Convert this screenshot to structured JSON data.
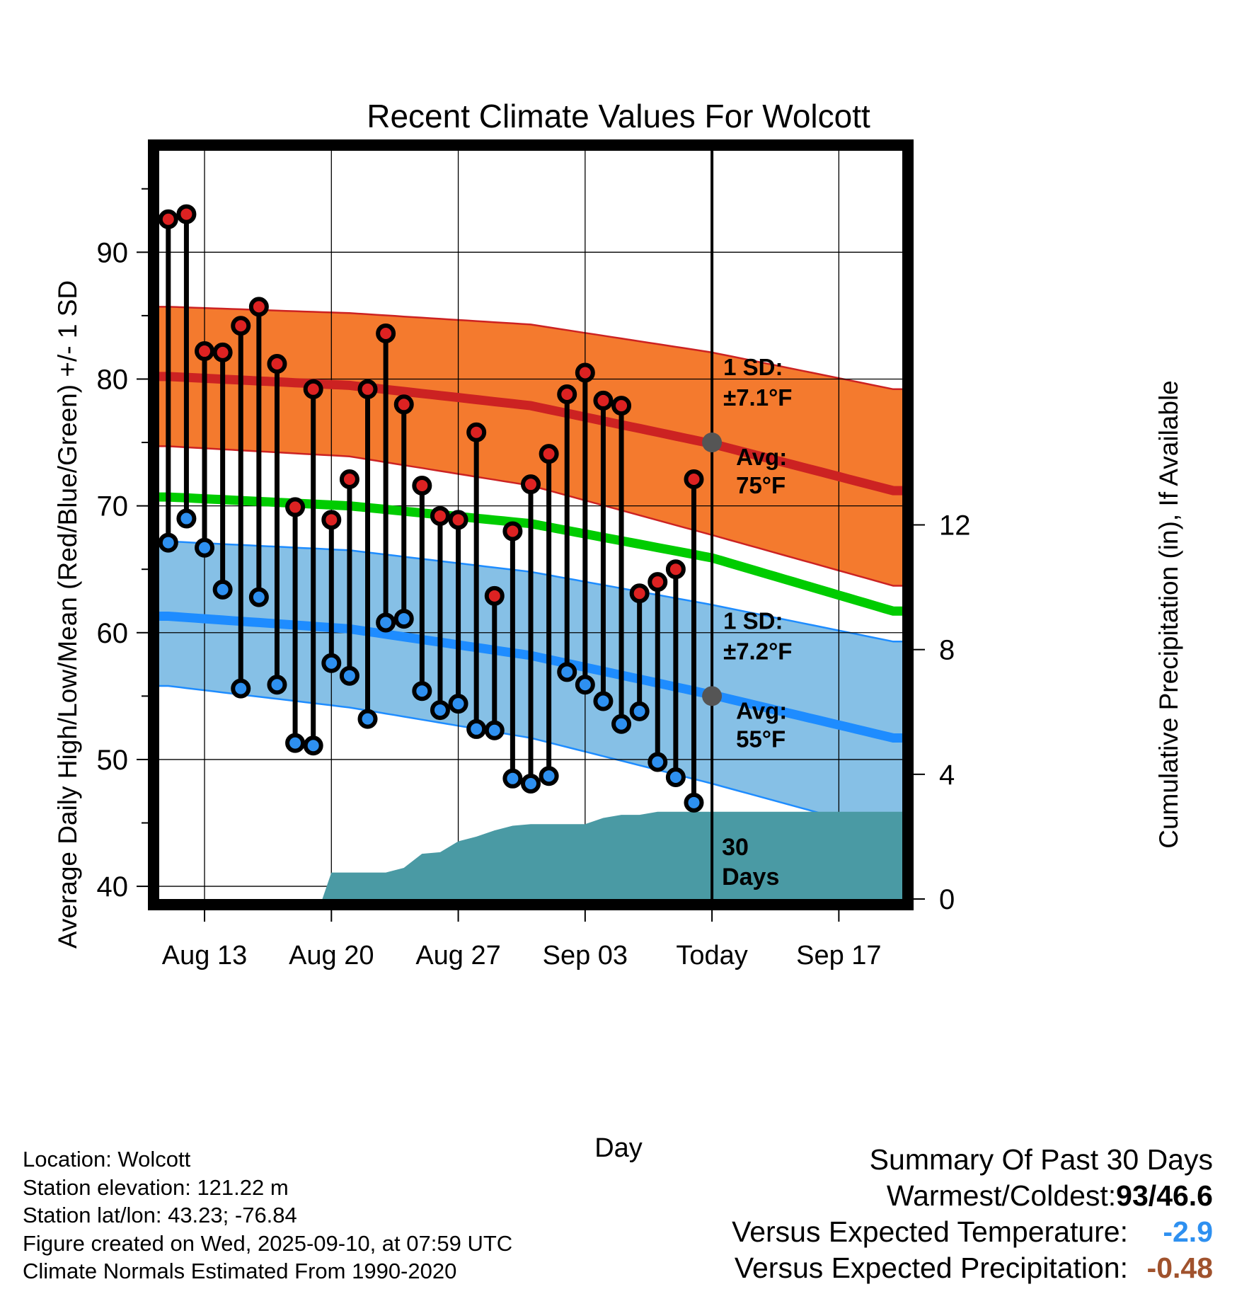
{
  "chart_data": {
    "type": "line",
    "title": "Recent Climate Values For Wolcott",
    "xlabel": "Day",
    "ylabel": "Average Daily High/Low/Mean (Red/Blue/Green) +/- 1 SD",
    "y2label": "Cumulative Precipitation (in), If Available",
    "ylim": [
      39,
      98
    ],
    "y2lim": [
      0,
      24
    ],
    "xlim": [
      -0.5,
      40.5
    ],
    "x_ticks": [
      {
        "day": 2,
        "label": "Aug 13"
      },
      {
        "day": 9,
        "label": "Aug 20"
      },
      {
        "day": 16,
        "label": "Aug 27"
      },
      {
        "day": 23,
        "label": "Sep 03"
      },
      {
        "day": 30,
        "label": "Today"
      },
      {
        "day": 37,
        "label": "Sep 17"
      }
    ],
    "y_ticks": [
      40,
      50,
      60,
      70,
      80,
      90
    ],
    "y2_ticks": [
      0,
      4,
      8,
      12
    ],
    "days_index_start_label": "Aug 11 = day 0",
    "highs": [
      92.6,
      93.0,
      82.2,
      82.1,
      84.2,
      85.7,
      81.2,
      69.9,
      79.2,
      68.9,
      72.1,
      79.2,
      83.6,
      78.0,
      71.6,
      69.2,
      68.9,
      75.8,
      62.9,
      68.0,
      71.7,
      74.1,
      78.8,
      80.5,
      78.3,
      77.9,
      63.1,
      64.0,
      65.0,
      72.1
    ],
    "lows": [
      67.1,
      69.0,
      66.7,
      63.4,
      55.6,
      62.8,
      55.9,
      51.3,
      51.1,
      57.6,
      56.6,
      53.2,
      60.8,
      61.1,
      55.4,
      53.9,
      54.4,
      52.4,
      52.3,
      48.5,
      48.1,
      48.7,
      56.9,
      55.9,
      54.6,
      52.8,
      53.8,
      49.8,
      48.6,
      46.6
    ],
    "normals": {
      "days": [
        0,
        10,
        20,
        30,
        40
      ],
      "avg_high": [
        80.2,
        79.5,
        77.9,
        74.9,
        71.2
      ],
      "high_upper_1sd": [
        85.7,
        85.2,
        84.3,
        82.1,
        79.2
      ],
      "high_lower_1sd": [
        74.7,
        73.9,
        71.6,
        67.7,
        63.7
      ],
      "avg_mean": [
        70.7,
        70.0,
        68.6,
        65.9,
        61.7
      ],
      "avg_low": [
        61.3,
        60.3,
        58.2,
        55.1,
        51.7
      ],
      "low_upper_1sd": [
        67.2,
        66.5,
        64.8,
        62.2,
        59.3
      ],
      "low_lower_1sd": [
        55.8,
        54.1,
        51.7,
        48.1,
        44.2
      ]
    },
    "precip_cumulative": {
      "days": [
        9,
        10,
        11,
        12,
        13,
        14,
        15,
        16,
        17,
        18,
        19,
        20,
        21,
        22,
        23,
        24,
        25,
        26,
        27,
        28,
        29,
        40
      ],
      "values": [
        0.85,
        0.85,
        0.85,
        0.85,
        1.0,
        1.45,
        1.5,
        1.85,
        2.0,
        2.2,
        2.35,
        2.4,
        2.4,
        2.4,
        2.4,
        2.6,
        2.7,
        2.7,
        2.8,
        2.8,
        2.8,
        2.8
      ]
    },
    "today_markers": [
      {
        "kind": "high",
        "value": 75,
        "sd_label": "1 SD:",
        "sd_value": "±7.1°F",
        "avg_label": "Avg:",
        "avg_value": "75°F"
      },
      {
        "kind": "low",
        "value": 55,
        "sd_label": "1 SD:",
        "sd_value": "±7.2°F",
        "avg_label": "Avg:",
        "avg_value": "55°F"
      }
    ],
    "window_label": [
      "30",
      "Days"
    ]
  },
  "info": {
    "location": "Location: Wolcott",
    "elevation": "Station elevation: 121.22 m",
    "latlon": "Station lat/lon: 43.23; -76.84",
    "created": "Figure created on Wed, 2025-09-10, at 07:59 UTC",
    "normals_note": "Climate Normals Estimated From 1990-2020"
  },
  "summary": {
    "title": "Summary Of Past 30 Days",
    "warmest_label": "Warmest/Coldest:",
    "warmest_value": "93",
    "coldest_value": "46.6",
    "temp_label": "Versus Expected Temperature:",
    "temp_value": "-2.9",
    "precip_label": "Versus Expected Precipitation:",
    "precip_value": "-0.48"
  },
  "colors": {
    "high_band": "#f47a2e",
    "high_line": "#cc2222",
    "mean_line": "#00cc00",
    "low_band": "#86c0e6",
    "low_line": "#1e8cff",
    "precip": "#4a9aa4",
    "high_marker": "#dd2222",
    "low_marker": "#2e90f0",
    "temp_anomaly": "#2e90f0",
    "precip_anomaly": "#a0522d",
    "annotation": "#555555"
  }
}
